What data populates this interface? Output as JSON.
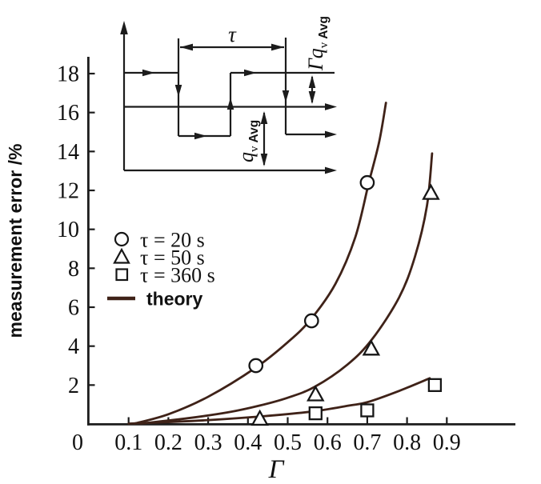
{
  "figure": {
    "colors": {
      "theory": "#3f2218",
      "axis": "#1c1c1c",
      "marker_stroke": "#161616",
      "marker_fill": "#ffffff"
    },
    "y_axis": {
      "title": "measurement error /%",
      "ticks": [
        2,
        4,
        6,
        8,
        10,
        12,
        14,
        16,
        18
      ]
    },
    "x_axis": {
      "title": "Γ",
      "origin_label": "0",
      "ticks": [
        0.1,
        0.2,
        0.3,
        0.4,
        0.5,
        0.6,
        0.7,
        0.8,
        0.9
      ]
    },
    "legend": {
      "items": [
        {
          "marker": "circle",
          "label": "τ = 20 s"
        },
        {
          "marker": "triangle",
          "label": "τ = 50 s"
        },
        {
          "marker": "square",
          "label": "τ = 360 s"
        },
        {
          "marker": "line",
          "label": "theory"
        }
      ]
    }
  },
  "chart_data": {
    "type": "scatter",
    "title": "",
    "xlabel": "Γ",
    "ylabel": "measurement error /%",
    "xlim": [
      0,
      1.07
    ],
    "ylim": [
      0,
      18.8
    ],
    "grid": false,
    "legend_position": "upper-left-inside",
    "series": [
      {
        "name": "τ = 20 s",
        "marker": "circle",
        "points": [
          [
            0.42,
            3.0
          ],
          [
            0.56,
            5.3
          ],
          [
            0.7,
            12.4
          ]
        ]
      },
      {
        "name": "τ = 50 s",
        "marker": "triangle",
        "points": [
          [
            0.43,
            0.25
          ],
          [
            0.57,
            1.5
          ],
          [
            0.71,
            3.85
          ],
          [
            0.86,
            11.85
          ]
        ]
      },
      {
        "name": "τ = 360 s",
        "marker": "square",
        "points": [
          [
            0.57,
            0.55
          ],
          [
            0.7,
            0.7
          ],
          [
            0.87,
            2.0
          ]
        ]
      }
    ],
    "theory_curves": [
      {
        "name": "theory τ = 20 s",
        "points": [
          [
            0.115,
            0.02
          ],
          [
            0.2,
            0.5
          ],
          [
            0.3,
            1.4
          ],
          [
            0.42,
            2.9
          ],
          [
            0.5,
            4.2
          ],
          [
            0.557,
            5.35
          ],
          [
            0.62,
            7.2
          ],
          [
            0.67,
            9.6
          ],
          [
            0.704,
            12.4
          ],
          [
            0.73,
            14.5
          ],
          [
            0.747,
            16.5
          ]
        ]
      },
      {
        "name": "theory τ = 50 s",
        "points": [
          [
            0.13,
            0.02
          ],
          [
            0.25,
            0.3
          ],
          [
            0.35,
            0.6
          ],
          [
            0.43,
            0.95
          ],
          [
            0.5,
            1.35
          ],
          [
            0.567,
            1.9
          ],
          [
            0.65,
            3.05
          ],
          [
            0.712,
            4.35
          ],
          [
            0.78,
            6.5
          ],
          [
            0.82,
            8.6
          ],
          [
            0.85,
            11.2
          ],
          [
            0.863,
            13.9
          ]
        ]
      },
      {
        "name": "theory τ = 360 s",
        "points": [
          [
            0.1,
            0.02
          ],
          [
            0.2,
            0.1
          ],
          [
            0.3,
            0.2
          ],
          [
            0.44,
            0.4
          ],
          [
            0.565,
            0.65
          ],
          [
            0.655,
            0.95
          ],
          [
            0.7,
            1.12
          ],
          [
            0.78,
            1.7
          ],
          [
            0.857,
            2.35
          ]
        ]
      }
    ]
  },
  "inset": {
    "tau": "τ",
    "qv": {
      "q": "q",
      "sub": "v",
      "avg": "Avg"
    },
    "gamma_qv": {
      "gamma": "Γ",
      "q": "q",
      "sub": "v",
      "avg": "Avg"
    }
  }
}
